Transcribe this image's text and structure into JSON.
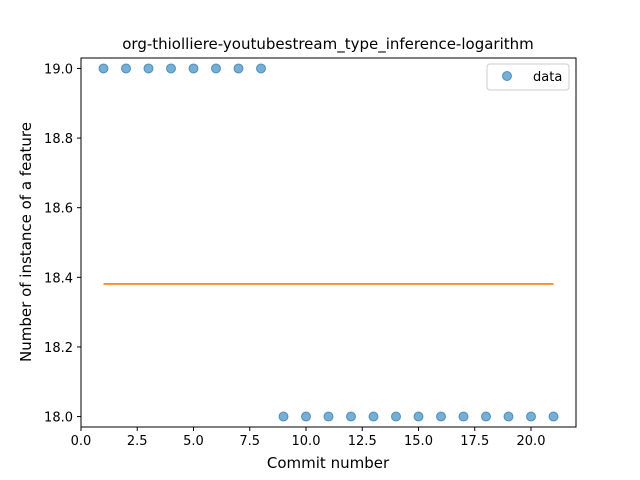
{
  "chart_data": {
    "type": "scatter",
    "title": "org-thiolliere-youtubestream_type_inference-logarithm",
    "xlabel": "Commit number",
    "ylabel": "Number of instance of a feature",
    "xlim": [
      0,
      22
    ],
    "ylim": [
      17.97,
      19.03
    ],
    "x_ticks": [
      0,
      2.5,
      5,
      7.5,
      10,
      12.5,
      15,
      17.5,
      20
    ],
    "x_tick_labels": [
      "0.0",
      "2.5",
      "5.0",
      "7.5",
      "10.0",
      "12.5",
      "15.0",
      "17.5",
      "20.0"
    ],
    "y_ticks": [
      18.0,
      18.2,
      18.4,
      18.6,
      18.8,
      19.0
    ],
    "y_tick_labels": [
      "18.0",
      "18.2",
      "18.4",
      "18.6",
      "18.8",
      "19.0"
    ],
    "grid": false,
    "legend_position": "top-right",
    "series": [
      {
        "name": "data",
        "kind": "scatter",
        "color": "#1f77b4",
        "x": [
          1,
          2,
          3,
          4,
          5,
          6,
          7,
          8,
          9,
          10,
          11,
          12,
          13,
          14,
          15,
          16,
          17,
          18,
          19,
          20,
          21
        ],
        "y": [
          19,
          19,
          19,
          19,
          19,
          19,
          19,
          19,
          18,
          18,
          18,
          18,
          18,
          18,
          18,
          18,
          18,
          18,
          18,
          18,
          18
        ]
      },
      {
        "kind": "line",
        "color": "#ff7f0e",
        "x": [
          1,
          21
        ],
        "y": [
          18.381,
          18.381
        ]
      }
    ]
  }
}
